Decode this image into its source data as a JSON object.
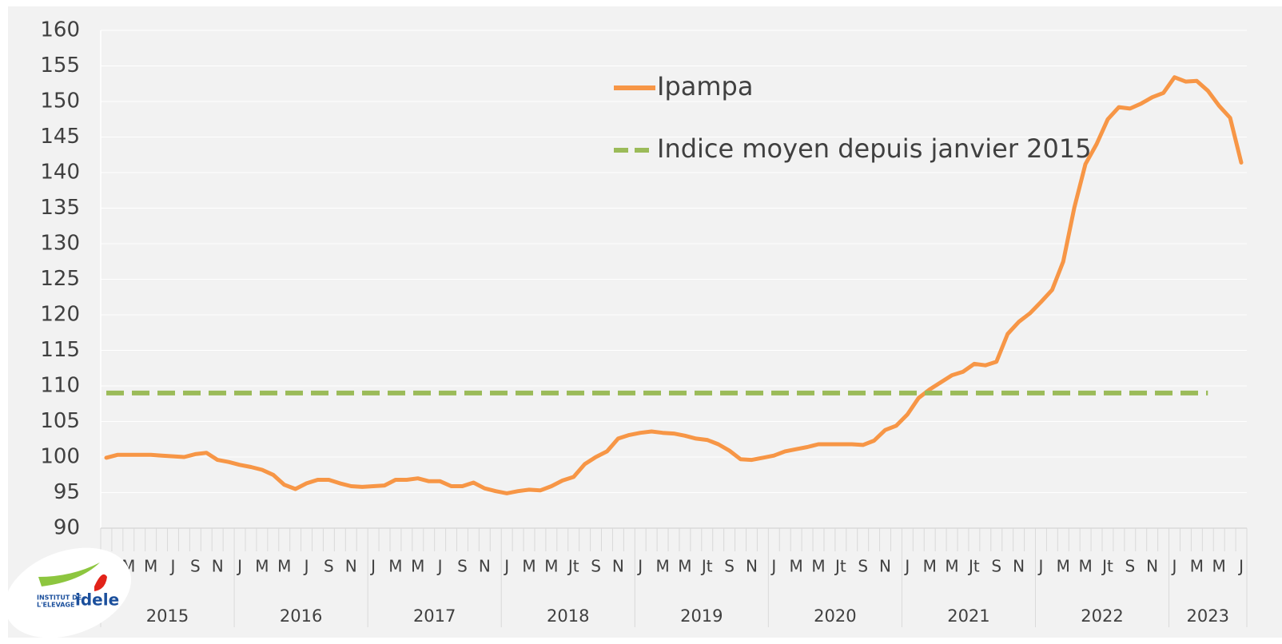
{
  "chart_data": {
    "type": "line",
    "categories": [
      "J",
      null,
      "M",
      null,
      "M",
      null,
      "J",
      null,
      "S",
      null,
      "N",
      null,
      "J",
      null,
      "M",
      null,
      "M",
      null,
      "J",
      null,
      "S",
      null,
      "N",
      null,
      "J",
      null,
      "M",
      null,
      "M",
      null,
      "J",
      null,
      "S",
      null,
      "N",
      null,
      "J",
      null,
      "M",
      null,
      "M",
      null,
      "Jt",
      null,
      "S",
      null,
      "N",
      null,
      "J",
      null,
      "M",
      null,
      "M",
      null,
      "Jt",
      null,
      "S",
      null,
      "N",
      null,
      "J",
      null,
      "M",
      null,
      "M",
      null,
      "Jt",
      null,
      "S",
      null,
      "N",
      null,
      "J",
      null,
      "M",
      null,
      "M",
      null,
      "Jt",
      null,
      "S",
      null,
      "N",
      null,
      "J",
      null,
      "M",
      null,
      "M",
      null,
      "Jt",
      null,
      "S",
      null,
      "N",
      null,
      "J",
      null,
      "M",
      null,
      "M",
      null,
      "J"
    ],
    "years": [
      "2015",
      "2016",
      "2017",
      "2018",
      "2019",
      "2020",
      "2021",
      "2022",
      "2023"
    ],
    "series": [
      {
        "name": "Ipampa",
        "color": "#f79646",
        "values": [
          99.9,
          100.3,
          100.3,
          100.3,
          100.3,
          100.2,
          100.1,
          100.0,
          100.4,
          100.6,
          99.6,
          99.3,
          98.9,
          98.6,
          98.2,
          97.5,
          96.1,
          95.5,
          96.3,
          96.8,
          96.8,
          96.3,
          95.9,
          95.8,
          95.9,
          96.0,
          96.8,
          96.8,
          97.0,
          96.6,
          96.6,
          95.9,
          95.9,
          96.4,
          95.6,
          95.2,
          94.9,
          95.2,
          95.4,
          95.3,
          95.9,
          96.7,
          97.2,
          99.0,
          100.0,
          100.8,
          102.6,
          103.1,
          103.4,
          103.6,
          103.4,
          103.3,
          103.0,
          102.6,
          102.4,
          101.8,
          100.9,
          99.7,
          99.6,
          99.9,
          100.2,
          100.8,
          101.1,
          101.4,
          101.8,
          101.8,
          101.8,
          101.8,
          101.7,
          102.3,
          103.8,
          104.4,
          106.0,
          108.3,
          109.5,
          110.5,
          111.5,
          112.0,
          113.1,
          112.9,
          113.4,
          117.3,
          119.0,
          120.2,
          121.8,
          123.5,
          127.5,
          135.1,
          141.2,
          144.0,
          147.5,
          149.2,
          149.0,
          149.7,
          150.6,
          151.2,
          153.4,
          152.8,
          152.9,
          151.5,
          149.4,
          147.7,
          141.4
        ]
      },
      {
        "name": "Indice moyen depuis janvier 2015",
        "color": "#9bbb59",
        "dashed": true,
        "values": [
          109,
          109,
          109,
          109,
          109,
          109,
          109,
          109,
          109,
          109,
          109,
          109,
          109,
          109,
          109,
          109,
          109,
          109,
          109,
          109,
          109,
          109,
          109,
          109,
          109,
          109,
          109,
          109,
          109,
          109,
          109,
          109,
          109,
          109,
          109,
          109,
          109,
          109,
          109,
          109,
          109,
          109,
          109,
          109,
          109,
          109,
          109,
          109,
          109,
          109,
          109,
          109,
          109,
          109,
          109,
          109,
          109,
          109,
          109,
          109,
          109,
          109,
          109,
          109,
          109,
          109,
          109,
          109,
          109,
          109,
          109,
          109,
          109,
          109,
          109,
          109,
          109,
          109,
          109,
          109,
          109,
          109,
          109,
          109,
          109,
          109,
          109,
          109,
          109,
          109,
          109,
          109,
          109,
          109,
          109,
          109,
          109,
          109,
          109,
          109,
          null,
          null,
          null
        ]
      }
    ],
    "ylim": [
      90,
      160
    ],
    "yticks": [
      90,
      95,
      100,
      105,
      110,
      115,
      120,
      125,
      130,
      135,
      140,
      145,
      150,
      155,
      160
    ],
    "grid": true
  },
  "logo": {
    "line1": "INSTITUT DE",
    "line2": "L'ELEVAGE",
    "brand": "idele"
  }
}
